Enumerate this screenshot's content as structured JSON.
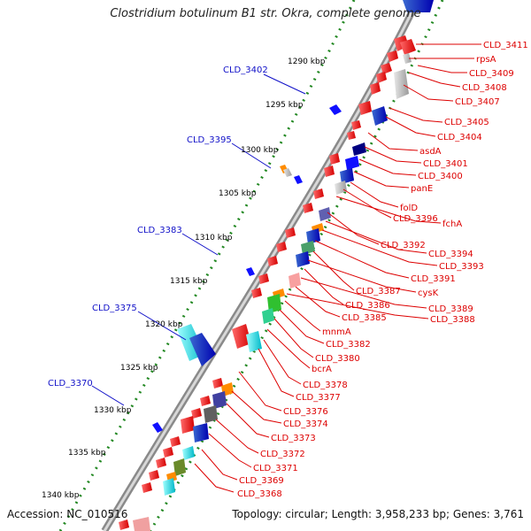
{
  "title": "Clostridium botulinum B1 str. Okra, complete genome",
  "accession": "Accession: NC_010516",
  "topology": "Topology: circular; Length: 3,958,233 bp; Genes: 3,761",
  "scale_labels": [
    "1290 kbp",
    "1295 kbp",
    "1300 kbp",
    "1305 kbp",
    "1310 kbp",
    "1315 kbp",
    "1320 kbp",
    "1325 kbp",
    "1330 kbp",
    "1335 kbp",
    "1340 kbp"
  ],
  "left_labels": [
    "CLD_3402",
    "CLD_3395",
    "CLD_3383",
    "CLD_3375",
    "CLD_3370"
  ],
  "right_labels": [
    "CLD_3411",
    "rpsA",
    "CLD_3409",
    "CLD_3408",
    "CLD_3407",
    "CLD_3405",
    "CLD_3404",
    "asdA",
    "CLD_3401",
    "CLD_3400",
    "panE",
    "folD",
    "CLD_3396",
    "fchA",
    "CLD_3392",
    "CLD_3394",
    "CLD_3393",
    "CLD_3391",
    "CLD_3387",
    "cysK",
    "CLD_3386",
    "CLD_3389",
    "CLD_3385",
    "CLD_3388",
    "mnmA",
    "CLD_3382",
    "CLD_3380",
    "bcrA",
    "CLD_3378",
    "CLD_3377",
    "CLD_3376",
    "CLD_3374",
    "CLD_3373",
    "CLD_3372",
    "CLD_3371",
    "CLD_3369",
    "CLD_3368"
  ],
  "colors": {
    "left_label": "#1010c8",
    "right_label": "#dd0000",
    "scale_label": "#000000",
    "tick_dots": "#228822",
    "backbone": "#9a9a9a"
  }
}
